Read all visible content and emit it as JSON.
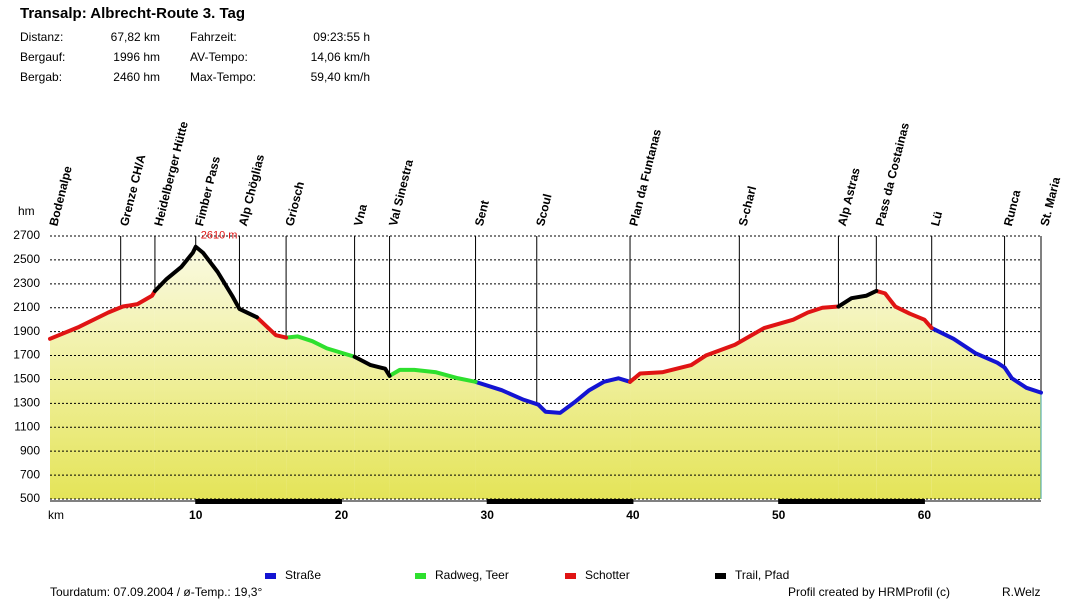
{
  "header": {
    "title": "Transalp: Albrecht-Route 3. Tag",
    "stats": [
      {
        "label": "Distanz:",
        "value": "67,82 km"
      },
      {
        "label": "Bergauf:",
        "value": "1996 hm"
      },
      {
        "label": "Bergab:",
        "value": "2460 hm"
      },
      {
        "label": "Fahrzeit:",
        "value": "09:23:55 h"
      },
      {
        "label": "AV-Tempo:",
        "value": "14,06 km/h"
      },
      {
        "label": "Max-Tempo:",
        "value": "59,40 km/h"
      }
    ]
  },
  "chart_data": {
    "type": "line",
    "ylabel": "hm",
    "xlabel": "km",
    "xlim": [
      0,
      68
    ],
    "xticks": [
      10,
      20,
      30,
      40,
      50,
      60
    ],
    "ylim": [
      500,
      2700
    ],
    "yticks": [
      500,
      700,
      900,
      1100,
      1300,
      1500,
      1700,
      1900,
      2100,
      2300,
      2500,
      2700
    ],
    "grid": true,
    "annotation": {
      "text": "2610 m",
      "x": 10,
      "y": 2610
    },
    "waypoints": [
      {
        "name": "Bodenalpe",
        "x": 0
      },
      {
        "name": "Grenze CH/A",
        "x": 4.85
      },
      {
        "name": "Heidelberger Hütte",
        "x": 7.2
      },
      {
        "name": "Fimber Pass",
        "x": 10
      },
      {
        "name": "Alp Chöglias",
        "x": 13
      },
      {
        "name": "Griosch",
        "x": 16.2
      },
      {
        "name": "Vna",
        "x": 20.9
      },
      {
        "name": "Val Sinestra",
        "x": 23.3
      },
      {
        "name": "Sent",
        "x": 29.2
      },
      {
        "name": "Scoul",
        "x": 33.4
      },
      {
        "name": "Plan da Funtanas",
        "x": 39.8
      },
      {
        "name": "S-charl",
        "x": 47.3
      },
      {
        "name": "Alp Astras",
        "x": 54.1
      },
      {
        "name": "Pass da Costainas",
        "x": 56.7
      },
      {
        "name": "Lü",
        "x": 60.5
      },
      {
        "name": "Runca",
        "x": 65.5
      },
      {
        "name": "St. Maria",
        "x": 68
      }
    ],
    "series": [
      {
        "name": "Straße",
        "color": "#1414d2",
        "x": [
          29.2,
          31,
          32.5,
          33.5,
          34,
          35,
          36,
          37,
          38,
          39,
          39.8,
          null,
          60.5,
          62,
          63.5,
          65,
          65.5,
          66,
          67,
          68
        ],
        "values": [
          1480,
          1410,
          1330,
          1290,
          1230,
          1220,
          1310,
          1410,
          1480,
          1510,
          1480,
          null,
          1930,
          1840,
          1720,
          1640,
          1600,
          1510,
          1430,
          1390
        ]
      },
      {
        "name": "Radweg, Teer",
        "color": "#2ee02e",
        "x": [
          16.2,
          17,
          18,
          19,
          20.9,
          null,
          23.3,
          24,
          25,
          26.5,
          28,
          29.2
        ],
        "values": [
          1850,
          1860,
          1820,
          1760,
          1690,
          null,
          1530,
          1580,
          1580,
          1560,
          1510,
          1480
        ]
      },
      {
        "name": "Schotter",
        "color": "#e01414",
        "x": [
          0,
          2,
          4,
          5,
          6,
          7,
          7.2,
          null,
          14.2,
          15.5,
          16.2,
          null,
          39.8,
          40.5,
          42,
          44,
          45,
          47,
          49,
          51,
          52,
          53,
          54.1,
          null,
          56.7,
          57.3,
          58,
          59,
          60,
          60.5
        ],
        "values": [
          1840,
          1940,
          2060,
          2110,
          2130,
          2200,
          2240,
          null,
          2020,
          1870,
          1850,
          null,
          1480,
          1550,
          1560,
          1620,
          1700,
          1790,
          1930,
          2000,
          2060,
          2100,
          2110,
          null,
          2240,
          2220,
          2110,
          2050,
          2000,
          1930
        ]
      },
      {
        "name": "Trail, Pfad",
        "color": "#000000",
        "x": [
          7.2,
          8,
          9,
          9.8,
          10,
          10.5,
          11.5,
          12.5,
          13,
          14.2,
          null,
          20.9,
          22,
          23,
          23.3,
          null,
          54.1,
          55,
          56,
          56.7
        ],
        "values": [
          2240,
          2340,
          2440,
          2560,
          2610,
          2560,
          2400,
          2200,
          2090,
          2020,
          null,
          1690,
          1620,
          1590,
          1530,
          null,
          2110,
          2180,
          2200,
          2240
        ]
      }
    ]
  },
  "footer": {
    "date": "Tourdatum: 07.09.2004 / ø-Temp.: 19,3°",
    "credit": "Profil created by HRMProfil (c)",
    "author": "R.Welz"
  }
}
